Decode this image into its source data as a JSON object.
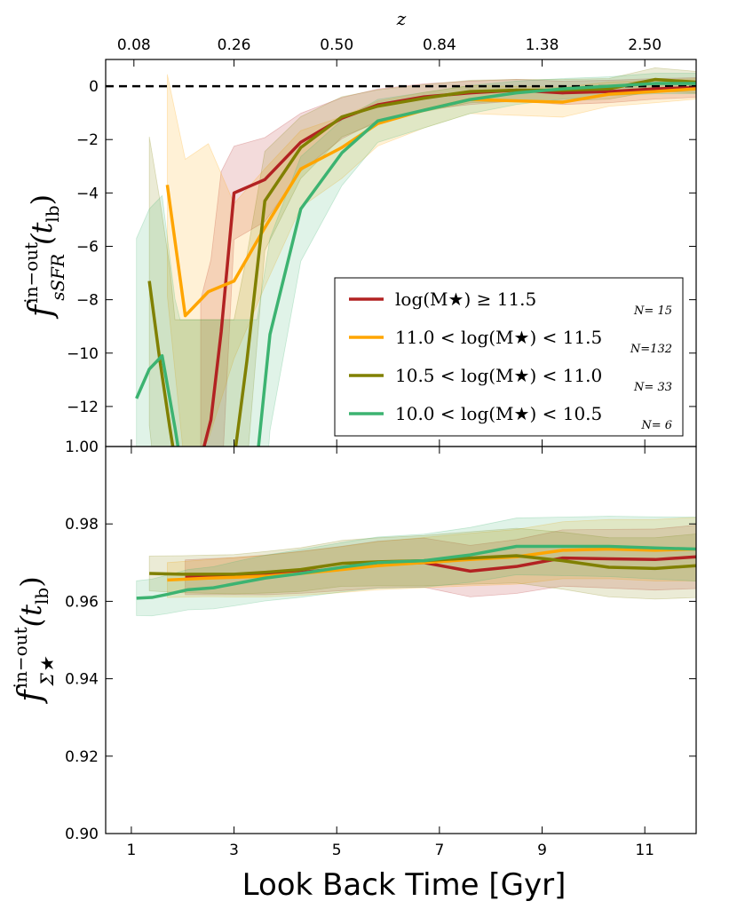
{
  "chart_data": [
    {
      "type": "line",
      "panel": "top",
      "ylabel_main": "f",
      "ylabel_sup": "in−out",
      "ylabel_sub": "sSFR",
      "ylabel_arg": "(t",
      "ylabel_arg_sub": "lb",
      "ylabel_close": ")",
      "top_axis_title": "z",
      "top_axis_ticks": [
        {
          "x": 1.05,
          "label": "0.08"
        },
        {
          "x": 3.0,
          "label": "0.26"
        },
        {
          "x": 5.0,
          "label": "0.50"
        },
        {
          "x": 7.0,
          "label": "0.84"
        },
        {
          "x": 9.0,
          "label": "1.38"
        },
        {
          "x": 11.0,
          "label": "2.50"
        }
      ],
      "xlim": [
        0.5,
        12.0
      ],
      "ylim": [
        -13.5,
        1.0
      ],
      "yticks": [
        0,
        -2,
        -4,
        -6,
        -8,
        -10,
        -12
      ],
      "ytick_labels": [
        "0",
        "−2",
        "−4",
        "−6",
        "−8",
        "−10",
        "−12"
      ],
      "reference_line": {
        "y": 0,
        "style": "dashed",
        "color": "#000000"
      },
      "series": [
        {
          "name": "log(M★) ≥ 11.5",
          "n_label": "N= 15",
          "color": "#b22222",
          "x": [
            2.35,
            2.55,
            2.75,
            3.0,
            3.6,
            4.3,
            5.1,
            5.8,
            6.7,
            7.6,
            8.5,
            9.4,
            10.3,
            11.2,
            12.0
          ],
          "y": [
            -14.0,
            -12.5,
            -9.2,
            -4.0,
            -3.5,
            -2.1,
            -1.2,
            -0.7,
            -0.4,
            -0.25,
            -0.15,
            -0.25,
            -0.2,
            -0.1,
            -0.05
          ]
        },
        {
          "name": "11.0 < log(M★) < 11.5",
          "n_label": "N=132",
          "color": "#ffa500",
          "x": [
            1.7,
            2.05,
            2.5,
            3.0,
            3.6,
            4.3,
            5.1,
            5.8,
            6.7,
            7.6,
            8.5,
            9.4,
            10.3,
            11.2,
            12.0
          ],
          "y": [
            -3.7,
            -8.6,
            -7.7,
            -7.3,
            -5.3,
            -3.1,
            -2.3,
            -1.4,
            -0.9,
            -0.5,
            -0.55,
            -0.6,
            -0.3,
            -0.2,
            -0.1
          ]
        },
        {
          "name": "10.5 < log(M★) < 11.0",
          "n_label": "N= 33",
          "color": "#808000",
          "x": [
            1.35,
            1.55,
            1.75,
            1.85,
            3.0,
            3.25,
            3.6,
            4.3,
            5.1,
            5.8,
            6.7,
            7.6,
            8.5,
            9.4,
            10.3,
            11.2,
            12.0
          ],
          "y": [
            -7.3,
            -10.2,
            -12.8,
            -14.0,
            -14.0,
            -10.3,
            -4.3,
            -2.3,
            -1.15,
            -0.75,
            -0.45,
            -0.2,
            -0.15,
            -0.15,
            -0.1,
            0.25,
            0.15
          ]
        },
        {
          "name": "10.0 < log(M★) < 10.5",
          "n_label": "N= 6",
          "color": "#3cb371",
          "x": [
            1.1,
            1.35,
            1.6,
            1.85,
            1.95,
            3.45,
            3.7,
            4.3,
            5.1,
            5.8,
            6.7,
            7.6,
            8.5,
            9.4,
            10.3,
            11.2,
            12.0
          ],
          "y": [
            -11.7,
            -10.6,
            -10.1,
            -12.8,
            -14.0,
            -14.0,
            -9.3,
            -4.6,
            -2.5,
            -1.3,
            -0.9,
            -0.5,
            -0.25,
            -0.1,
            0.0,
            0.1,
            0.1
          ]
        }
      ]
    },
    {
      "type": "line",
      "panel": "bottom",
      "title": "",
      "xlabel": "Look Back Time [Gyr]",
      "ylabel_main": "f",
      "ylabel_sup": "in−out",
      "ylabel_sub": "Σ★",
      "ylabel_arg": "(t",
      "ylabel_arg_sub": "lb",
      "ylabel_close": ")",
      "xlim": [
        0.5,
        12.0
      ],
      "ylim": [
        0.9,
        1.0
      ],
      "xticks": [
        1,
        3,
        5,
        7,
        9,
        11
      ],
      "xtick_labels": [
        "1",
        "3",
        "5",
        "7",
        "9",
        "11"
      ],
      "yticks": [
        1.0,
        0.98,
        0.96,
        0.94,
        0.92,
        0.9
      ],
      "ytick_labels": [
        "1.00",
        "0.98",
        "0.96",
        "0.94",
        "0.92",
        "0.90"
      ],
      "series": [
        {
          "name": "log(M★) ≥ 11.5",
          "color": "#b22222",
          "x": [
            2.05,
            3.0,
            3.6,
            4.3,
            5.1,
            5.8,
            6.7,
            7.6,
            8.5,
            9.4,
            10.3,
            11.2,
            12.0
          ],
          "y": [
            0.9662,
            0.9665,
            0.9668,
            0.9675,
            0.9685,
            0.9695,
            0.97,
            0.9678,
            0.969,
            0.9712,
            0.971,
            0.9708,
            0.9715
          ]
        },
        {
          "name": "11.0 < log(M★) < 11.5",
          "color": "#ffa500",
          "x": [
            1.7,
            2.5,
            3.0,
            3.6,
            4.3,
            5.1,
            5.8,
            6.7,
            7.6,
            8.5,
            9.4,
            10.3,
            11.2,
            12.0
          ],
          "y": [
            0.9655,
            0.966,
            0.9662,
            0.9665,
            0.9672,
            0.9682,
            0.9692,
            0.97,
            0.9708,
            0.9715,
            0.9732,
            0.9735,
            0.9732,
            0.9735
          ]
        },
        {
          "name": "10.5 < log(M★) < 11.0",
          "color": "#808000",
          "x": [
            1.35,
            2.0,
            3.0,
            3.6,
            4.3,
            5.1,
            5.8,
            6.7,
            7.6,
            8.5,
            9.4,
            10.3,
            11.2,
            12.0
          ],
          "y": [
            0.9672,
            0.967,
            0.967,
            0.9675,
            0.9682,
            0.9698,
            0.9702,
            0.9705,
            0.9712,
            0.9718,
            0.9705,
            0.9688,
            0.9685,
            0.9692
          ]
        },
        {
          "name": "10.0 < log(M★) < 10.5",
          "color": "#3cb371",
          "x": [
            1.1,
            1.4,
            1.7,
            2.1,
            2.6,
            3.0,
            3.6,
            4.3,
            5.1,
            5.8,
            6.7,
            7.6,
            8.5,
            9.4,
            10.3,
            11.2,
            12.0
          ],
          "y": [
            0.9608,
            0.961,
            0.9618,
            0.963,
            0.9635,
            0.9645,
            0.966,
            0.9672,
            0.9688,
            0.97,
            0.9705,
            0.972,
            0.9742,
            0.9742,
            0.9742,
            0.9738,
            0.9735
          ]
        }
      ]
    }
  ]
}
